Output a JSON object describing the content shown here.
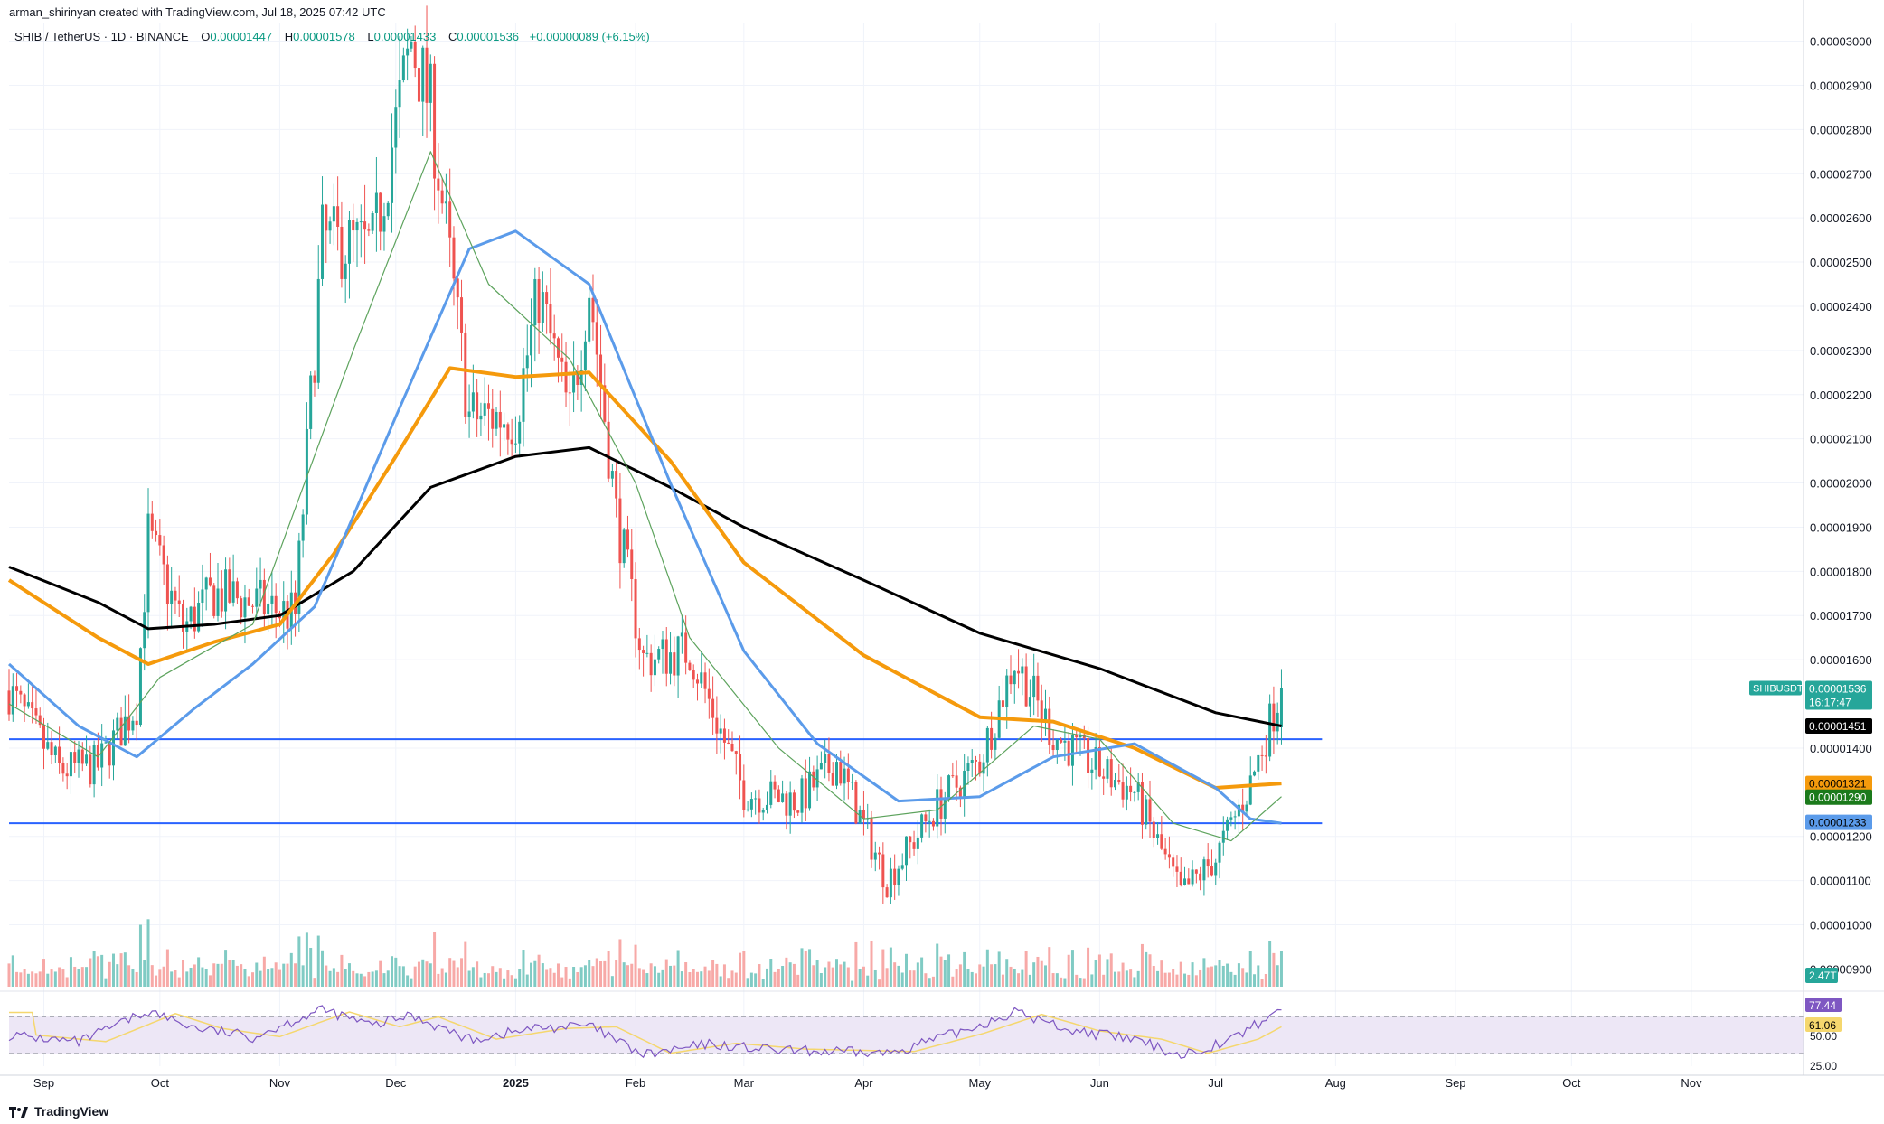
{
  "header": {
    "attribution": "arman_shirinyan created with TradingView.com, Jul 18, 2025 07:42 UTC",
    "symbol": "SHIB / TetherUS · 1D · BINANCE",
    "o_label": "O",
    "o_value": "0.00001447",
    "h_label": "H",
    "h_value": "0.00001578",
    "l_label": "L",
    "l_value": "0.00001433",
    "c_label": "C",
    "c_value": "0.00001536",
    "change": "+0.00000089 (+6.15%)"
  },
  "footer": {
    "brand": "TradingView"
  },
  "colors": {
    "up": "#26a69a",
    "down": "#ef5350",
    "vol_up": "#80cbc4",
    "vol_down": "#f7a9a7",
    "ma_black": "#000000",
    "ma_orange": "#f59a0c",
    "ma_blue": "#5b9bea",
    "ma_green": "#5da35d",
    "hline": "#2962ff",
    "rsi_line": "#7e57c2",
    "rsi_ma": "#f5d76e",
    "rsi_band": "#ede7f6"
  },
  "chart_data": {
    "type": "candlestick",
    "title": "SHIB / TetherUS · 1D · BINANCE",
    "xlabel": "",
    "ylabel": "",
    "ylim": [
      8.6e-06,
      3.04e-05
    ],
    "y_ticks": [
      "0.00003000",
      "0.00002900",
      "0.00002800",
      "0.00002700",
      "0.00002600",
      "0.00002500",
      "0.00002400",
      "0.00002300",
      "0.00002200",
      "0.00002100",
      "0.00002000",
      "0.00001900",
      "0.00001800",
      "0.00001700",
      "0.00001600",
      "0.00001400",
      "0.00001200",
      "0.00001100",
      "0.00001000",
      "0.00000900"
    ],
    "x_ticks": [
      "Sep",
      "Oct",
      "Nov",
      "Dec",
      "2025",
      "Feb",
      "Mar",
      "Apr",
      "May",
      "Jun",
      "Jul",
      "Aug",
      "Sep",
      "Oct",
      "Nov"
    ],
    "x_range": [
      "2024-08-23",
      "2025-11-30"
    ],
    "last_date": "2025-07-18",
    "close_series": [
      {
        "date": "2024-08-23",
        "close": 1.53e-05
      },
      {
        "date": "2024-09-05",
        "close": 1.35e-05
      },
      {
        "date": "2024-09-15",
        "close": 1.36e-05
      },
      {
        "date": "2024-09-25",
        "close": 1.5e-05
      },
      {
        "date": "2024-09-28",
        "close": 1.88e-05
      },
      {
        "date": "2024-10-07",
        "close": 1.67e-05
      },
      {
        "date": "2024-10-15",
        "close": 1.75e-05
      },
      {
        "date": "2024-10-25",
        "close": 1.73e-05
      },
      {
        "date": "2024-11-05",
        "close": 1.7e-05
      },
      {
        "date": "2024-11-12",
        "close": 2.55e-05
      },
      {
        "date": "2024-11-25",
        "close": 2.53e-05
      },
      {
        "date": "2024-12-05",
        "close": 3e-05
      },
      {
        "date": "2024-12-10",
        "close": 2.85e-05
      },
      {
        "date": "2024-12-20",
        "close": 2.15e-05
      },
      {
        "date": "2025-01-01",
        "close": 2.15e-05
      },
      {
        "date": "2025-01-07",
        "close": 2.43e-05
      },
      {
        "date": "2025-01-15",
        "close": 2.15e-05
      },
      {
        "date": "2025-01-20",
        "close": 2.45e-05
      },
      {
        "date": "2025-01-27",
        "close": 1.93e-05
      },
      {
        "date": "2025-02-03",
        "close": 1.6e-05
      },
      {
        "date": "2025-02-15",
        "close": 1.62e-05
      },
      {
        "date": "2025-03-01",
        "close": 1.3e-05
      },
      {
        "date": "2025-03-15",
        "close": 1.28e-05
      },
      {
        "date": "2025-03-25",
        "close": 1.37e-05
      },
      {
        "date": "2025-04-07",
        "close": 1.1e-05
      },
      {
        "date": "2025-04-20",
        "close": 1.27e-05
      },
      {
        "date": "2025-05-01",
        "close": 1.37e-05
      },
      {
        "date": "2025-05-10",
        "close": 1.6e-05
      },
      {
        "date": "2025-05-20",
        "close": 1.43e-05
      },
      {
        "date": "2025-06-01",
        "close": 1.35e-05
      },
      {
        "date": "2025-06-10",
        "close": 1.3e-05
      },
      {
        "date": "2025-06-22",
        "close": 1.07e-05
      },
      {
        "date": "2025-07-01",
        "close": 1.15e-05
      },
      {
        "date": "2025-07-10",
        "close": 1.32e-05
      },
      {
        "date": "2025-07-18",
        "close": 1.54e-05
      }
    ],
    "moving_averages": [
      {
        "name": "MA black",
        "color": "#000000",
        "current": "0.00001451",
        "points": [
          [
            "2024-08-23",
            1.81e-05
          ],
          [
            "2024-09-15",
            1.73e-05
          ],
          [
            "2024-09-28",
            1.67e-05
          ],
          [
            "2024-10-15",
            1.68e-05
          ],
          [
            "2024-11-01",
            1.7e-05
          ],
          [
            "2024-11-20",
            1.8e-05
          ],
          [
            "2024-12-10",
            1.99e-05
          ],
          [
            "2025-01-01",
            2.06e-05
          ],
          [
            "2025-01-20",
            2.08e-05
          ],
          [
            "2025-02-10",
            1.99e-05
          ],
          [
            "2025-03-01",
            1.9e-05
          ],
          [
            "2025-04-01",
            1.78e-05
          ],
          [
            "2025-05-01",
            1.66e-05
          ],
          [
            "2025-06-01",
            1.58e-05
          ],
          [
            "2025-07-01",
            1.48e-05
          ],
          [
            "2025-07-18",
            1.45e-05
          ]
        ]
      },
      {
        "name": "MA orange",
        "color": "#f59a0c",
        "current": "0.00001321",
        "points": [
          [
            "2024-08-23",
            1.78e-05
          ],
          [
            "2024-09-15",
            1.65e-05
          ],
          [
            "2024-09-28",
            1.59e-05
          ],
          [
            "2024-10-15",
            1.64e-05
          ],
          [
            "2024-11-01",
            1.68e-05
          ],
          [
            "2024-11-15",
            1.84e-05
          ],
          [
            "2024-12-01",
            2.06e-05
          ],
          [
            "2024-12-15",
            2.26e-05
          ],
          [
            "2025-01-01",
            2.24e-05
          ],
          [
            "2025-01-20",
            2.25e-05
          ],
          [
            "2025-02-10",
            2.05e-05
          ],
          [
            "2025-03-01",
            1.82e-05
          ],
          [
            "2025-04-01",
            1.61e-05
          ],
          [
            "2025-05-01",
            1.47e-05
          ],
          [
            "2025-05-20",
            1.46e-05
          ],
          [
            "2025-06-10",
            1.4e-05
          ],
          [
            "2025-07-01",
            1.31e-05
          ],
          [
            "2025-07-18",
            1.32e-05
          ]
        ]
      },
      {
        "name": "MA blue",
        "color": "#5b9bea",
        "current": "0.00001233",
        "points": [
          [
            "2024-08-23",
            1.59e-05
          ],
          [
            "2024-09-10",
            1.45e-05
          ],
          [
            "2024-09-25",
            1.38e-05
          ],
          [
            "2024-10-10",
            1.49e-05
          ],
          [
            "2024-10-25",
            1.59e-05
          ],
          [
            "2024-11-10",
            1.72e-05
          ],
          [
            "2024-12-01",
            2.15e-05
          ],
          [
            "2024-12-20",
            2.53e-05
          ],
          [
            "2025-01-01",
            2.57e-05
          ],
          [
            "2025-01-20",
            2.45e-05
          ],
          [
            "2025-02-10",
            2e-05
          ],
          [
            "2025-03-01",
            1.62e-05
          ],
          [
            "2025-03-20",
            1.41e-05
          ],
          [
            "2025-04-10",
            1.28e-05
          ],
          [
            "2025-05-01",
            1.29e-05
          ],
          [
            "2025-05-20",
            1.38e-05
          ],
          [
            "2025-06-10",
            1.41e-05
          ],
          [
            "2025-07-01",
            1.31e-05
          ],
          [
            "2025-07-10",
            1.24e-05
          ],
          [
            "2025-07-18",
            1.23e-05
          ]
        ]
      },
      {
        "name": "MA green",
        "color": "#5da35d",
        "current": "0.00001290",
        "points": [
          [
            "2024-08-23",
            1.5e-05
          ],
          [
            "2024-09-15",
            1.38e-05
          ],
          [
            "2024-10-01",
            1.56e-05
          ],
          [
            "2024-10-25",
            1.68e-05
          ],
          [
            "2024-11-20",
            2.3e-05
          ],
          [
            "2024-12-10",
            2.75e-05
          ],
          [
            "2024-12-25",
            2.45e-05
          ],
          [
            "2025-01-15",
            2.28e-05
          ],
          [
            "2025-02-01",
            2e-05
          ],
          [
            "2025-02-15",
            1.65e-05
          ],
          [
            "2025-03-10",
            1.4e-05
          ],
          [
            "2025-04-01",
            1.24e-05
          ],
          [
            "2025-04-20",
            1.26e-05
          ],
          [
            "2025-05-15",
            1.45e-05
          ],
          [
            "2025-06-01",
            1.42e-05
          ],
          [
            "2025-06-20",
            1.23e-05
          ],
          [
            "2025-07-05",
            1.19e-05
          ],
          [
            "2025-07-18",
            1.29e-05
          ]
        ]
      }
    ],
    "horizontal_lines": [
      1.42e-05,
      1.23e-05
    ],
    "current_price": {
      "label": "SHIBUSDT",
      "value": "0.00001536",
      "countdown": "16:17:47"
    },
    "volume": {
      "current": "2.47T"
    },
    "rsi": {
      "value": "77.44",
      "ma_value": "61.06",
      "levels": [
        "50.00",
        "25.00"
      ]
    }
  }
}
